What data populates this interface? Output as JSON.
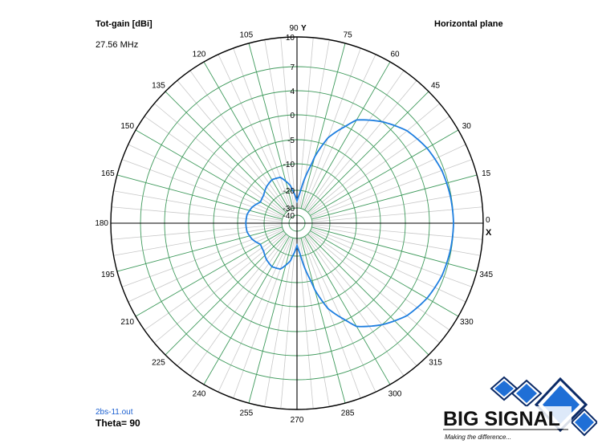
{
  "header": {
    "quantity_label": "Tot-gain [dBi]",
    "frequency": "27.56 MHz",
    "plane_label": "Horizontal plane"
  },
  "footer": {
    "file_name": "2bs-11.out",
    "theta_label": "Theta= 90"
  },
  "logo": {
    "text": "BIG SIGNAL",
    "tagline": "Making the difference..."
  },
  "colors": {
    "pattern": "#1f7fe0",
    "grid": "#3f9a5c",
    "minor_grid": "#c8c8c8",
    "axis": "#000000",
    "logo_blue": "#1f6fd6"
  },
  "chart_data": {
    "type": "polar",
    "angle_unit": "deg",
    "angle_ticks": [
      0,
      15,
      30,
      45,
      60,
      75,
      90,
      105,
      120,
      135,
      150,
      165,
      180,
      195,
      210,
      225,
      240,
      255,
      270,
      285,
      300,
      315,
      330,
      345
    ],
    "angle_tick_labels": [
      "0",
      "15",
      "30",
      "45",
      "60",
      "75",
      "90",
      "105",
      "120",
      "135",
      "150",
      "165",
      "180",
      "195",
      "210",
      "225",
      "240",
      "255",
      "270",
      "285",
      "300",
      "315",
      "330",
      "345"
    ],
    "axis_labels": {
      "x": "X",
      "y": "Y"
    },
    "radial_ticks_dbi": [
      10,
      7,
      4,
      0,
      -5,
      -10,
      -20,
      -30,
      -40
    ],
    "radial_tick_labels": [
      "10",
      "7",
      "4",
      "0",
      "-5",
      "-10",
      "-20",
      "-30",
      "-40"
    ],
    "series": [
      {
        "angle_deg": [
          0,
          10,
          20,
          30,
          40,
          50,
          60,
          70,
          75,
          80,
          85,
          90,
          95,
          100,
          110,
          120,
          130,
          140,
          150,
          160,
          170,
          180,
          190,
          200,
          210,
          220,
          230,
          240,
          250,
          260,
          265,
          270,
          275,
          280,
          285,
          290,
          300,
          310,
          320,
          330,
          340,
          350
        ],
        "gain_dbi": [
          7.0,
          6.9,
          6.7,
          6.2,
          5.4,
          4.0,
          1.8,
          -3.5,
          -8.0,
          -15.0,
          -22.0,
          -26.0,
          -22.0,
          -18.0,
          -14.0,
          -13.5,
          -14.5,
          -16.0,
          -16.5,
          -14.5,
          -13.3,
          -13.1,
          -13.3,
          -14.5,
          -16.5,
          -16.0,
          -14.5,
          -13.5,
          -14.0,
          -18.0,
          -22.0,
          -26.0,
          -22.0,
          -15.0,
          -8.0,
          -3.5,
          1.8,
          4.0,
          5.4,
          6.2,
          6.7,
          6.9
        ]
      }
    ]
  }
}
